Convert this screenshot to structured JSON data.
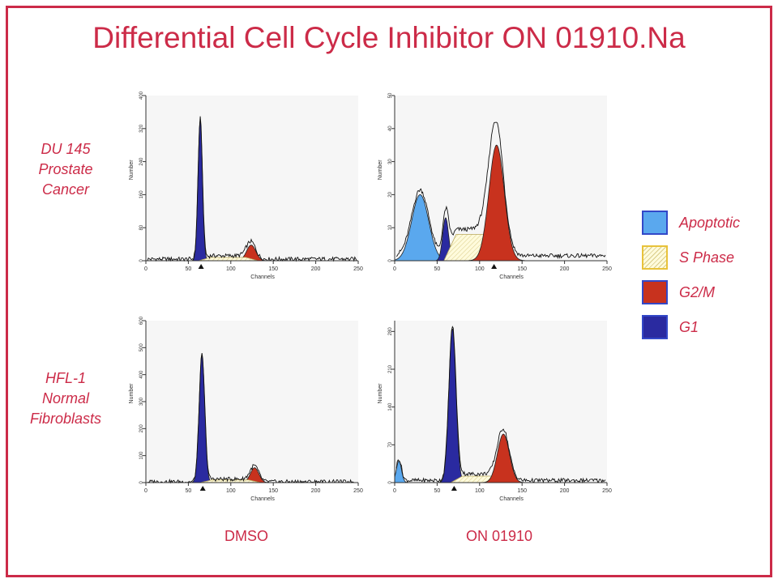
{
  "title": "Differential Cell Cycle Inhibitor ON 01910.Na",
  "row_labels": [
    [
      "DU 145",
      "Prostate",
      "Cancer"
    ],
    [
      "HFL-1",
      "Normal",
      "Fibroblasts"
    ]
  ],
  "column_labels": [
    "DMSO",
    "ON 01910"
  ],
  "legend": [
    {
      "name": "Apoptotic",
      "color": "#5aa8ee"
    },
    {
      "name": "S Phase",
      "color": "#fffbdc"
    },
    {
      "name": "G2/M",
      "color": "#c8321e"
    },
    {
      "name": "G1",
      "color": "#2a2aa0"
    }
  ],
  "colors": {
    "accent": "#cc2b48",
    "g1": "#2a2aa0",
    "g2m": "#c8321e",
    "s_phase": "#fffbdc",
    "s_phase_hatch": "#d8cc88",
    "apoptotic": "#5aa8ee",
    "frame": "#cc2b48"
  },
  "chart_data": [
    {
      "type": "area",
      "panel": "DU 145 Prostate Cancer / DMSO",
      "xlabel": "Channels",
      "ylabel": "Number",
      "xlim": [
        0,
        250
      ],
      "ylim": [
        0,
        400
      ],
      "x_ticks": [
        "0",
        "50",
        "100",
        "150",
        "200",
        "250"
      ],
      "y_ticks": [
        "0",
        "80",
        "160",
        "240",
        "320",
        "400"
      ],
      "g1_marker_x": 65,
      "components": [
        {
          "name": "G1",
          "peak_x": 64,
          "peak_y": 340,
          "width": 2.6
        },
        {
          "name": "G2/M",
          "peak_x": 124,
          "peak_y": 38,
          "width": 5.5
        },
        {
          "name": "S Phase",
          "from_x": 62,
          "to_x": 132,
          "level_y": 8
        }
      ],
      "baseline_y": 4
    },
    {
      "type": "area",
      "panel": "DU 145 Prostate Cancer / ON 01910",
      "xlabel": "Channels",
      "ylabel": "Number",
      "xlim": [
        0,
        250
      ],
      "ylim": [
        0,
        50
      ],
      "x_ticks": [
        "0",
        "50",
        "100",
        "150",
        "200",
        "250"
      ],
      "y_ticks": [
        "0",
        "10",
        "20",
        "30",
        "40",
        "50"
      ],
      "g1_marker_x": 117,
      "components": [
        {
          "name": "Apoptotic",
          "peak_x": 30,
          "peak_y": 20,
          "width": 10
        },
        {
          "name": "G1",
          "peak_x": 60,
          "peak_y": 13,
          "width": 3.5
        },
        {
          "name": "S Phase",
          "from_x": 58,
          "to_x": 130,
          "level_y": 8
        },
        {
          "name": "G2/M",
          "peak_x": 120,
          "peak_y": 35,
          "width": 9
        }
      ],
      "baseline_y": 1.5
    },
    {
      "type": "area",
      "panel": "HFL-1 Normal Fibroblasts / DMSO",
      "xlabel": "Channels",
      "ylabel": "Number",
      "xlim": [
        0,
        250
      ],
      "ylim": [
        0,
        600
      ],
      "x_ticks": [
        "0",
        "50",
        "100",
        "150",
        "200",
        "250"
      ],
      "y_ticks": [
        "0",
        "100",
        "200",
        "300",
        "400",
        "500",
        "600"
      ],
      "g1_marker_x": 67,
      "components": [
        {
          "name": "G1",
          "peak_x": 66,
          "peak_y": 470,
          "width": 3.3
        },
        {
          "name": "G2/M",
          "peak_x": 128,
          "peak_y": 55,
          "width": 5
        },
        {
          "name": "S Phase",
          "from_x": 64,
          "to_x": 135,
          "level_y": 10
        }
      ],
      "baseline_y": 3
    },
    {
      "type": "area",
      "panel": "HFL-1 Normal Fibroblasts / ON 01910",
      "xlabel": "Channels",
      "ylabel": "Number",
      "xlim": [
        0,
        250
      ],
      "ylim": [
        0,
        300
      ],
      "x_ticks": [
        "0",
        "50",
        "100",
        "150",
        "200",
        "250"
      ],
      "y_ticks": [
        "0",
        "70",
        "140",
        "210",
        "280"
      ],
      "g1_marker_x": 70,
      "components": [
        {
          "name": "Apoptotic",
          "peak_x": 5,
          "peak_y": 40,
          "width": 3
        },
        {
          "name": "G1",
          "peak_x": 68,
          "peak_y": 285,
          "width": 4.2
        },
        {
          "name": "S Phase",
          "from_x": 66,
          "to_x": 135,
          "level_y": 12
        },
        {
          "name": "G2/M",
          "peak_x": 128,
          "peak_y": 90,
          "width": 7
        }
      ],
      "baseline_y": 4
    }
  ]
}
